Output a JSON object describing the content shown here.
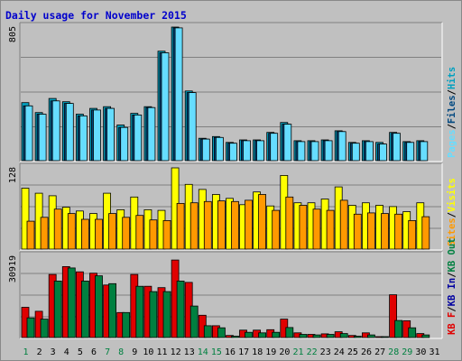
{
  "title": "Daily usage for November 2015",
  "colors": {
    "pages": "#66ddff",
    "hits": "#00a0c0",
    "files": "#004880",
    "visits": "#ffff00",
    "sites": "#ff9900",
    "kbf": "#e00000",
    "kbin": "#0000a0",
    "kbout": "#008040",
    "weekend": "#008040",
    "weekday": "#000000"
  },
  "chart_data": [
    {
      "type": "bar",
      "name": "hits-files-pages",
      "ymax_label": "805",
      "ylim": [
        0,
        805
      ],
      "side_label": {
        "parts": [
          "Pages",
          "/",
          "Files",
          "/",
          "Hits"
        ],
        "colors": [
          "pages",
          "sep",
          "files",
          "sep",
          "hits"
        ]
      },
      "categories": [
        "1",
        "2",
        "3",
        "4",
        "5",
        "6",
        "7",
        "8",
        "9",
        "10",
        "11",
        "12",
        "13",
        "14",
        "15",
        "16",
        "17",
        "18",
        "19",
        "20",
        "21",
        "22",
        "23",
        "24",
        "25",
        "26",
        "27",
        "28",
        "29",
        "30",
        "31"
      ],
      "series": [
        {
          "key": "hits",
          "values": [
            350,
            290,
            375,
            355,
            280,
            315,
            325,
            215,
            285,
            325,
            660,
            805,
            420,
            135,
            145,
            110,
            125,
            125,
            170,
            230,
            120,
            120,
            125,
            180,
            110,
            120,
            110,
            170,
            115,
            120,
            0
          ]
        },
        {
          "key": "files",
          "values": [
            330,
            280,
            360,
            345,
            270,
            305,
            315,
            200,
            275,
            320,
            650,
            800,
            410,
            130,
            140,
            105,
            120,
            120,
            165,
            220,
            115,
            115,
            120,
            175,
            105,
            115,
            100,
            165,
            110,
            115,
            0
          ]
        },
        {
          "key": "pages",
          "values": [
            330,
            280,
            360,
            345,
            270,
            305,
            315,
            200,
            275,
            320,
            650,
            800,
            410,
            130,
            140,
            105,
            120,
            120,
            165,
            220,
            115,
            115,
            120,
            175,
            105,
            115,
            100,
            165,
            110,
            115,
            0
          ]
        }
      ]
    },
    {
      "type": "bar",
      "name": "visits-sites",
      "ymax_label": "128",
      "ylim": [
        0,
        128
      ],
      "side_label": {
        "parts": [
          "Sites",
          "/",
          "Visits"
        ],
        "colors": [
          "sites",
          "sep",
          "visits"
        ]
      },
      "categories": [
        "1",
        "2",
        "3",
        "4",
        "5",
        "6",
        "7",
        "8",
        "9",
        "10",
        "11",
        "12",
        "13",
        "14",
        "15",
        "16",
        "17",
        "18",
        "19",
        "20",
        "21",
        "22",
        "23",
        "24",
        "25",
        "26",
        "27",
        "28",
        "29",
        "30",
        "31"
      ],
      "series": [
        {
          "key": "visits",
          "values": [
            96,
            88,
            84,
            66,
            60,
            56,
            88,
            62,
            82,
            62,
            61,
            128,
            102,
            94,
            86,
            80,
            70,
            90,
            68,
            116,
            73,
            73,
            79,
            98,
            69,
            73,
            69,
            67,
            59,
            73,
            0
          ]
        },
        {
          "key": "sites",
          "values": [
            44,
            50,
            63,
            56,
            47,
            47,
            56,
            50,
            53,
            46,
            45,
            72,
            73,
            75,
            76,
            75,
            77,
            86,
            61,
            82,
            69,
            63,
            61,
            77,
            55,
            57,
            56,
            55,
            45,
            51,
            0
          ]
        }
      ]
    },
    {
      "type": "bar",
      "name": "kbf-kbin-kbout",
      "ymax_label": "30919",
      "ylim": [
        0,
        30919
      ],
      "side_label": {
        "parts": [
          "KB F",
          "/",
          "KB In",
          "/",
          "KB Out"
        ],
        "colors": [
          "kbf",
          "sep",
          "kbin",
          "sep",
          "kbout"
        ]
      },
      "categories": [
        "1",
        "2",
        "3",
        "4",
        "5",
        "6",
        "7",
        "8",
        "9",
        "10",
        "11",
        "12",
        "13",
        "14",
        "15",
        "16",
        "17",
        "18",
        "19",
        "20",
        "21",
        "22",
        "23",
        "24",
        "25",
        "26",
        "27",
        "28",
        "29",
        "30",
        "31"
      ],
      "series": [
        {
          "key": "kbf",
          "values": [
            11500,
            10000,
            24000,
            27000,
            25000,
            24500,
            20000,
            9500,
            24000,
            19500,
            19000,
            29500,
            21000,
            8500,
            4500,
            800,
            2800,
            2800,
            3000,
            7000,
            1800,
            1200,
            1400,
            2200,
            800,
            1800,
            200,
            16300,
            6400,
            1500,
            0
          ]
        },
        {
          "key": "kbout",
          "values": [
            7500,
            7000,
            21500,
            26500,
            21500,
            23500,
            20500,
            9500,
            19500,
            17500,
            17500,
            21500,
            12000,
            4500,
            3700,
            500,
            2000,
            1800,
            2000,
            3800,
            1200,
            1000,
            1200,
            1500,
            500,
            1000,
            200,
            6500,
            3700,
            1000,
            0
          ]
        }
      ]
    }
  ],
  "weekend_days": [
    "1",
    "7",
    "8",
    "14",
    "15",
    "21",
    "22",
    "28",
    "29"
  ]
}
